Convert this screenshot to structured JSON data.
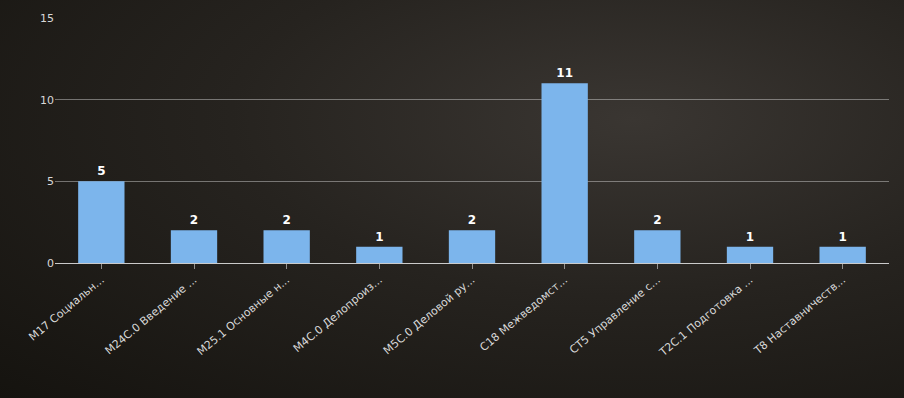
{
  "chart_data": {
    "type": "bar",
    "categories": [
      "M17 Социальн...",
      "M24C.0 Введение ...",
      "M25.1 Основные н...",
      "M4C.0 Делопроиз...",
      "M5C.0 Деловой ру...",
      "C18 Межведомст...",
      "CT5 Управление с...",
      "T2C.1 Подготовка ...",
      "T8 Наставничеств..."
    ],
    "values": [
      5,
      2,
      2,
      1,
      2,
      11,
      2,
      1,
      1
    ],
    "color": "#7cb5ec",
    "ylim": [
      0,
      15
    ],
    "yticks": [
      0,
      5,
      10,
      15
    ],
    "grid": true,
    "data_labels": true
  }
}
